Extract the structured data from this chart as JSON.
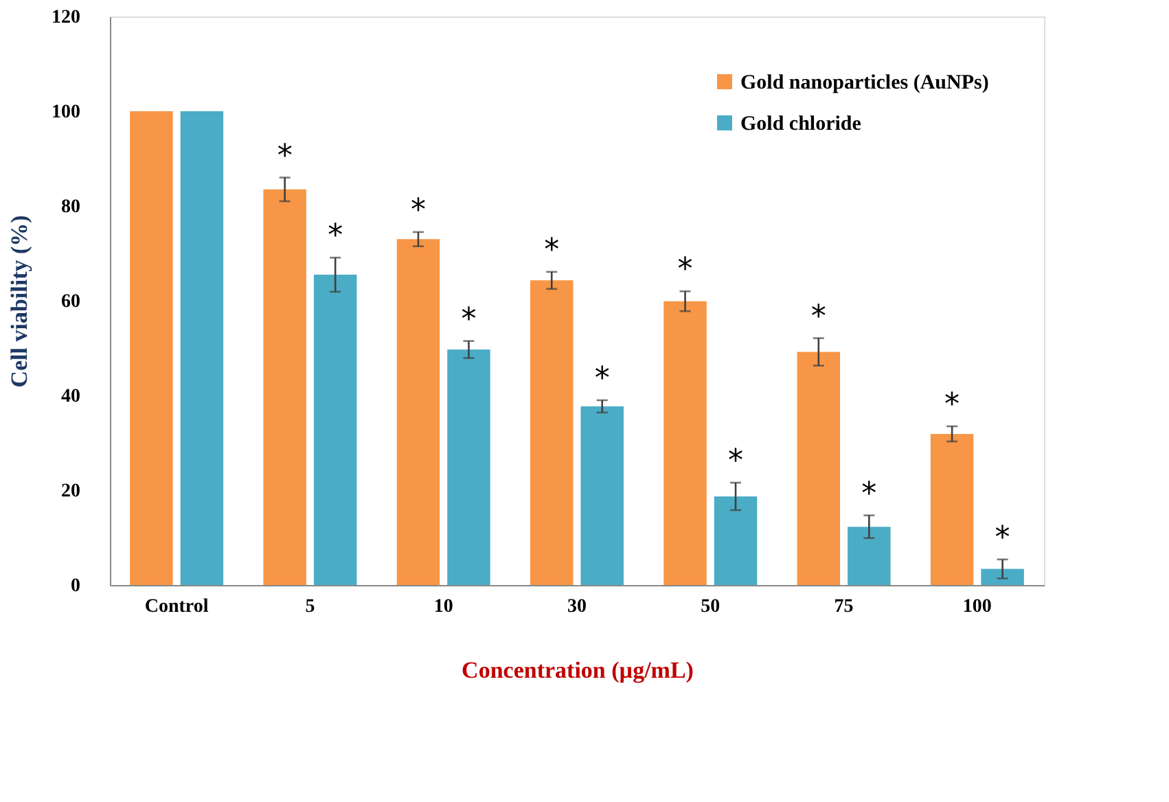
{
  "chart_data": {
    "type": "bar",
    "categories": [
      "Control",
      "5",
      "10",
      "30",
      "50",
      "75",
      "100"
    ],
    "xlabel": "Concentration (µg/mL)",
    "ylabel": "Cell viability (%)",
    "series": [
      {
        "name": "Gold nanoparticles (AuNPs)",
        "color": "#f79646",
        "values": [
          100,
          83.5,
          73.0,
          64.3,
          59.9,
          49.2,
          31.9
        ],
        "errors": [
          null,
          2.5,
          1.5,
          1.8,
          2.1,
          2.9,
          1.6
        ]
      },
      {
        "name": "Gold chloride",
        "color": "#4bacc6",
        "values": [
          100,
          65.5,
          49.7,
          37.7,
          18.7,
          12.3,
          3.4
        ],
        "errors": [
          null,
          3.6,
          1.8,
          1.3,
          2.9,
          2.4,
          2.0
        ]
      }
    ],
    "ylim": [
      0,
      120
    ],
    "yticks": [
      0,
      20,
      40,
      60,
      80,
      100,
      120
    ],
    "grid": false,
    "legend": "top right",
    "annotations": [
      {
        "text": "*",
        "x": "5",
        "y": 83.5
      },
      {
        "text": "*",
        "x": "5",
        "y": 65.5
      },
      {
        "text": "*",
        "x": "10",
        "y": 73.0
      },
      {
        "text": "*",
        "x": "10",
        "y": 49.7
      },
      {
        "text": "*",
        "x": "30",
        "y": 64.3
      },
      {
        "text": "*",
        "x": "30",
        "y": 37.7
      },
      {
        "text": "*",
        "x": "50",
        "y": 59.9
      },
      {
        "text": "*",
        "x": "50",
        "y": 18.7
      },
      {
        "text": "*",
        "x": "75",
        "y": 49.2
      },
      {
        "text": "*",
        "x": "75",
        "y": 12.3
      },
      {
        "text": "*",
        "x": "100",
        "y": 31.9
      },
      {
        "text": "*",
        "x": "100",
        "y": 3.4
      }
    ]
  }
}
